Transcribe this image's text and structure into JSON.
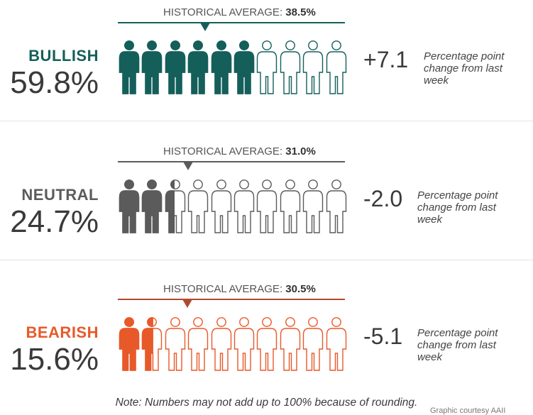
{
  "chart_data": {
    "type": "pictograph",
    "icons_per_row": 10,
    "sentiments": [
      {
        "label": "BULLISH",
        "percent": 59.8,
        "percent_text": "59.8%",
        "historical_average_label": "HISTORICAL AVERAGE:",
        "historical_average": 38.5,
        "historical_average_text": "38.5%",
        "change": 7.1,
        "change_text": "+7.1",
        "change_note": "Percentage point change from last week",
        "color": "#155f5b",
        "marker_color": "#155f5b"
      },
      {
        "label": "NEUTRAL",
        "percent": 24.7,
        "percent_text": "24.7%",
        "historical_average_label": "HISTORICAL AVERAGE:",
        "historical_average": 31.0,
        "historical_average_text": "31.0%",
        "change": -2.0,
        "change_text": "-2.0",
        "change_note": "Percentage point change from last week",
        "color": "#5b5b5b",
        "marker_color": "#5b5b5b"
      },
      {
        "label": "BEARISH",
        "percent": 15.6,
        "percent_text": "15.6%",
        "historical_average_label": "HISTORICAL AVERAGE:",
        "historical_average": 30.5,
        "historical_average_text": "30.5%",
        "change": -5.1,
        "change_text": "-5.1",
        "change_note": "Percentage point change from last week",
        "color": "#e8592a",
        "marker_color": "#b04a2e"
      }
    ],
    "note": "Note: Numbers may not add up to 100% because of rounding.",
    "credit": "Graphic courtesy AAII"
  }
}
